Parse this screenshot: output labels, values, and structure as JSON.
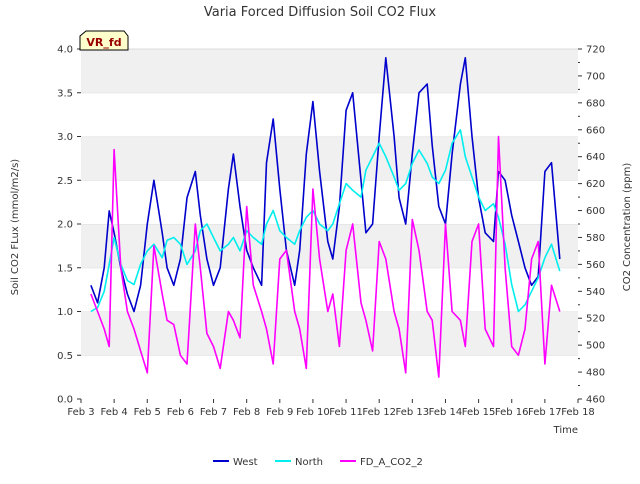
{
  "chart_data": {
    "type": "line",
    "title": "Varia Forced Diffusion Soil CO2 Flux",
    "xlabel": "Time",
    "ylabel_left": "Soil CO2 FLux (mmol/m2/s)",
    "ylabel_right": "CO2 Concentration (ppm)",
    "badge": "VR_fd",
    "xlim": [
      3,
      18
    ],
    "ylim_left": [
      0,
      4
    ],
    "ylim_right": [
      460,
      720
    ],
    "x_ticks": [
      {
        "value": 3,
        "label": "Feb 3"
      },
      {
        "value": 4,
        "label": "Feb 4"
      },
      {
        "value": 5,
        "label": "Feb 5"
      },
      {
        "value": 6,
        "label": "Feb 6"
      },
      {
        "value": 7,
        "label": "Feb 7"
      },
      {
        "value": 8,
        "label": "Feb 8"
      },
      {
        "value": 9,
        "label": "Feb 9"
      },
      {
        "value": 10,
        "label": "Feb 10"
      },
      {
        "value": 11,
        "label": "Feb 11"
      },
      {
        "value": 12,
        "label": "Feb 12"
      },
      {
        "value": 13,
        "label": "Feb 13"
      },
      {
        "value": 14,
        "label": "Feb 14"
      },
      {
        "value": 15,
        "label": "Feb 15"
      },
      {
        "value": 16,
        "label": "Feb 16"
      },
      {
        "value": 17,
        "label": "Feb 17"
      },
      {
        "value": 18,
        "label": "Feb 18"
      }
    ],
    "y_left_ticks": [
      "0.0",
      "0.5",
      "1.0",
      "1.5",
      "2.0",
      "2.5",
      "3.0",
      "3.5",
      "4.0"
    ],
    "y_right_ticks": [
      460,
      480,
      500,
      520,
      540,
      560,
      580,
      600,
      620,
      640,
      660,
      680,
      700,
      720
    ],
    "grid": "horizontal bands",
    "legend_position": "bottom-center",
    "series": [
      {
        "name": "West",
        "axis": "left",
        "color": "#0000cc",
        "x": [
          3.3,
          3.5,
          3.7,
          3.85,
          4.0,
          4.2,
          4.4,
          4.6,
          4.8,
          5.0,
          5.2,
          5.45,
          5.6,
          5.8,
          6.0,
          6.2,
          6.45,
          6.6,
          6.8,
          7.0,
          7.2,
          7.45,
          7.6,
          7.8,
          8.0,
          8.2,
          8.45,
          8.6,
          8.8,
          9.0,
          9.2,
          9.45,
          9.6,
          9.8,
          10.0,
          10.2,
          10.45,
          10.6,
          10.8,
          11.0,
          11.2,
          11.45,
          11.6,
          11.8,
          12.0,
          12.2,
          12.45,
          12.6,
          12.8,
          13.0,
          13.2,
          13.45,
          13.6,
          13.8,
          14.0,
          14.2,
          14.45,
          14.6,
          14.8,
          15.0,
          15.2,
          15.45,
          15.6,
          15.8,
          16.0,
          16.2,
          16.4,
          16.6,
          16.8,
          17.0,
          17.2,
          17.45
        ],
        "y": [
          1.3,
          1.1,
          1.5,
          2.15,
          1.9,
          1.5,
          1.2,
          1.0,
          1.3,
          2.0,
          2.5,
          1.9,
          1.5,
          1.3,
          1.6,
          2.3,
          2.6,
          2.1,
          1.6,
          1.3,
          1.5,
          2.4,
          2.8,
          2.2,
          1.7,
          1.5,
          1.3,
          2.7,
          3.2,
          2.4,
          1.7,
          1.3,
          1.7,
          2.8,
          3.4,
          2.6,
          1.8,
          1.6,
          2.2,
          3.3,
          3.5,
          2.5,
          1.9,
          2.0,
          3.0,
          3.9,
          3.0,
          2.3,
          2.0,
          2.8,
          3.5,
          3.6,
          2.9,
          2.2,
          2.0,
          2.8,
          3.6,
          3.9,
          3.0,
          2.3,
          1.9,
          1.8,
          2.6,
          2.5,
          2.1,
          1.8,
          1.5,
          1.3,
          1.4,
          2.6,
          2.7,
          1.6
        ]
      },
      {
        "name": "North",
        "axis": "right",
        "color": "#00eeee",
        "x": [
          3.3,
          3.5,
          3.7,
          3.85,
          4.0,
          4.2,
          4.4,
          4.6,
          4.8,
          5.0,
          5.2,
          5.45,
          5.6,
          5.8,
          6.0,
          6.2,
          6.45,
          6.6,
          6.8,
          7.0,
          7.2,
          7.45,
          7.6,
          7.8,
          8.0,
          8.2,
          8.45,
          8.6,
          8.8,
          9.0,
          9.2,
          9.45,
          9.6,
          9.8,
          10.0,
          10.2,
          10.45,
          10.6,
          10.8,
          11.0,
          11.2,
          11.45,
          11.6,
          11.8,
          12.0,
          12.2,
          12.45,
          12.6,
          12.8,
          13.0,
          13.2,
          13.45,
          13.6,
          13.8,
          14.0,
          14.2,
          14.45,
          14.6,
          14.8,
          15.0,
          15.2,
          15.45,
          15.6,
          15.8,
          16.0,
          16.2,
          16.4,
          16.6,
          16.8,
          17.0,
          17.2,
          17.45
        ],
        "y": [
          525,
          528,
          540,
          560,
          580,
          560,
          548,
          545,
          560,
          570,
          575,
          565,
          578,
          580,
          575,
          560,
          570,
          585,
          590,
          580,
          570,
          575,
          580,
          570,
          585,
          580,
          575,
          590,
          600,
          585,
          580,
          575,
          585,
          595,
          600,
          590,
          585,
          590,
          605,
          620,
          615,
          610,
          630,
          640,
          650,
          640,
          625,
          615,
          620,
          635,
          645,
          635,
          625,
          620,
          630,
          650,
          660,
          640,
          625,
          610,
          600,
          605,
          595,
          575,
          545,
          525,
          530,
          540,
          550,
          565,
          575,
          555
        ]
      },
      {
        "name": "FD_A_CO2_2",
        "axis": "left",
        "color": "#ff00ff",
        "x": [
          3.3,
          3.5,
          3.7,
          3.85,
          4.0,
          4.2,
          4.4,
          4.6,
          4.8,
          5.0,
          5.2,
          5.45,
          5.6,
          5.8,
          6.0,
          6.2,
          6.45,
          6.6,
          6.8,
          7.0,
          7.2,
          7.45,
          7.6,
          7.8,
          8.0,
          8.2,
          8.45,
          8.6,
          8.8,
          9.0,
          9.2,
          9.45,
          9.6,
          9.8,
          10.0,
          10.2,
          10.45,
          10.6,
          10.8,
          11.0,
          11.2,
          11.45,
          11.6,
          11.8,
          12.0,
          12.2,
          12.45,
          12.6,
          12.8,
          13.0,
          13.2,
          13.45,
          13.6,
          13.8,
          14.0,
          14.2,
          14.45,
          14.6,
          14.8,
          15.0,
          15.2,
          15.45,
          15.6,
          15.8,
          16.0,
          16.2,
          16.4,
          16.6,
          16.8,
          17.0,
          17.2,
          17.45
        ],
        "y": [
          1.2,
          1.0,
          0.8,
          0.6,
          2.85,
          1.5,
          1.0,
          0.8,
          0.55,
          0.3,
          1.75,
          1.2,
          0.9,
          0.85,
          0.5,
          0.4,
          2.0,
          1.5,
          0.75,
          0.6,
          0.35,
          1.0,
          0.9,
          0.7,
          2.2,
          1.3,
          1.0,
          0.8,
          0.4,
          1.6,
          1.7,
          1.0,
          0.8,
          0.35,
          2.4,
          1.6,
          1.0,
          1.2,
          0.6,
          1.7,
          2.0,
          1.1,
          0.9,
          0.55,
          1.8,
          1.6,
          1.0,
          0.8,
          0.3,
          2.05,
          1.7,
          1.0,
          0.9,
          0.25,
          2.0,
          1.0,
          0.9,
          0.6,
          1.8,
          2.0,
          0.8,
          0.6,
          3.0,
          1.5,
          0.6,
          0.5,
          0.8,
          1.6,
          1.8,
          0.4,
          1.3,
          1.0
        ]
      }
    ]
  }
}
